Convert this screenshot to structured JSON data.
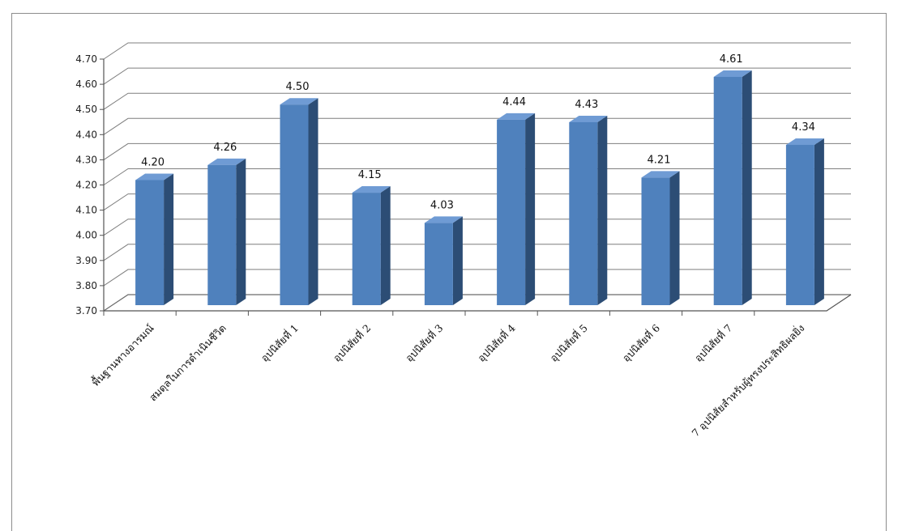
{
  "chart_data": {
    "type": "bar",
    "style": "3d-column",
    "title": "",
    "xlabel": "",
    "ylabel": "",
    "ylim": [
      3.7,
      4.7
    ],
    "ytick_step": 0.1,
    "yticks": [
      "3.70",
      "3.80",
      "3.90",
      "4.00",
      "4.10",
      "4.20",
      "4.30",
      "4.40",
      "4.50",
      "4.60",
      "4.70"
    ],
    "grid": true,
    "legend": "none",
    "bar_color": "#4f81bd",
    "bar_side_color": "#2c4d75",
    "bar_top_color": "#6f9bd4",
    "categories": [
      "พื้นฐานทางอารมณ์",
      "สมดุลในการดำเนินชีวิต",
      "อุปนิสัยที่  1",
      "อุปนิสัยที่  2",
      "อุปนิสัยที่  3",
      "อุปนิสัยที่  4",
      "อุปนิสัยที่  5",
      "อุปนิสัยที่  6",
      "อุปนิสัยที่  7",
      "7 อุปนิสัยสำหรับผู้ทรงประสิทธิผลยิ่ง"
    ],
    "values": [
      4.2,
      4.26,
      4.5,
      4.15,
      4.03,
      4.44,
      4.43,
      4.21,
      4.61,
      4.34
    ],
    "value_labels": [
      "4.20",
      "4.26",
      "4.50",
      "4.15",
      "4.03",
      "4.44",
      "4.43",
      "4.21",
      "4.61",
      "4.34"
    ]
  }
}
